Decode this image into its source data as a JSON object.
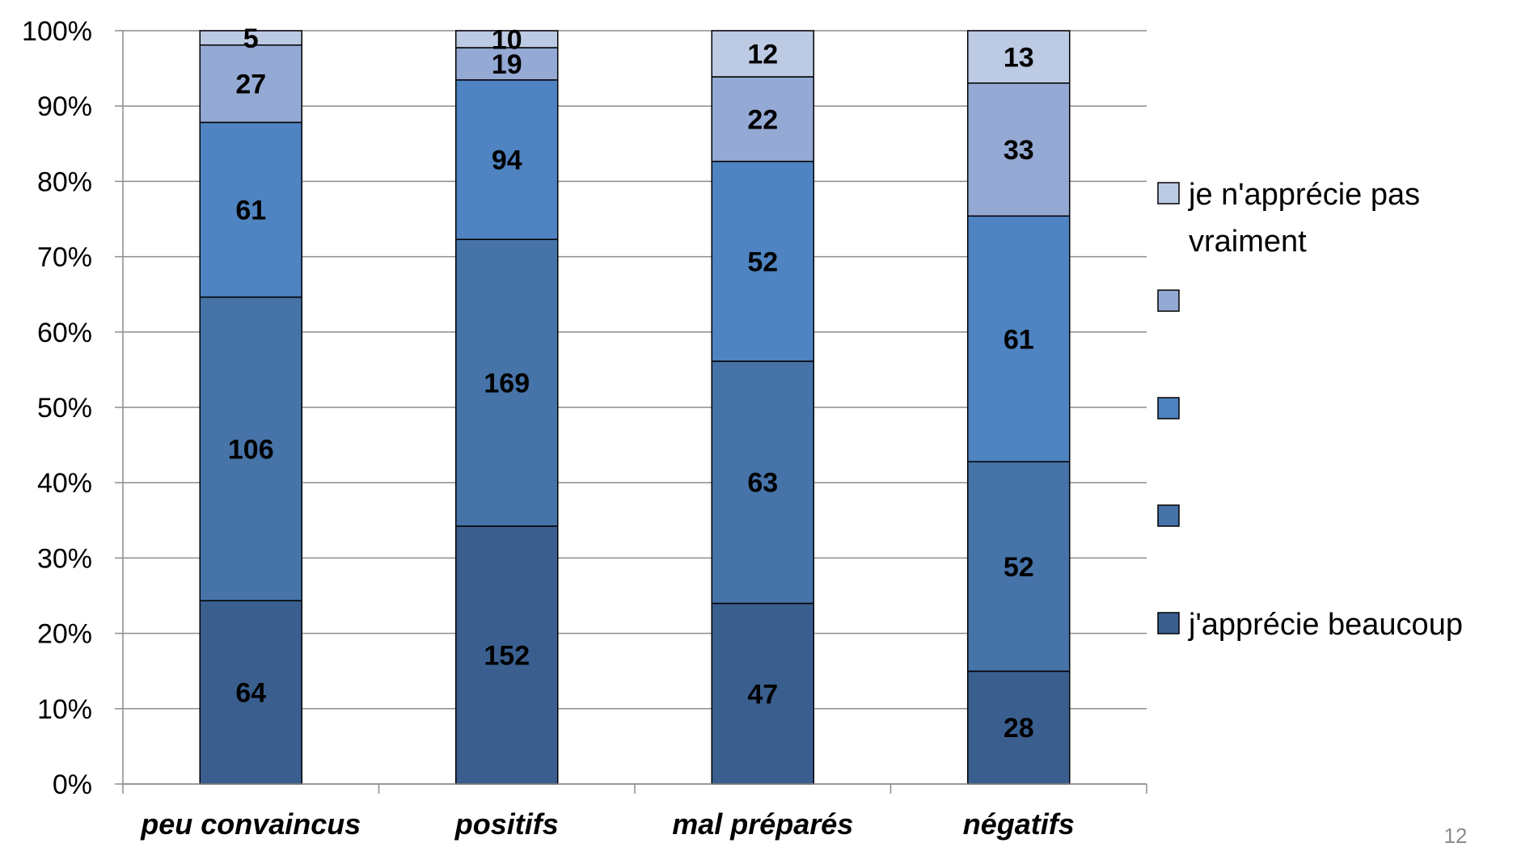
{
  "chart_data": {
    "type": "bar",
    "stacked": "percent",
    "categories": [
      "peu convaincus",
      "positifs",
      "mal préparés",
      "négatifs"
    ],
    "series": [
      {
        "name": "j'apprécie beaucoup",
        "values": [
          64,
          152,
          47,
          28
        ],
        "color": "#3a5f8f"
      },
      {
        "name": "",
        "values": [
          106,
          169,
          63,
          52
        ],
        "color": "#4673a8"
      },
      {
        "name": "",
        "values": [
          61,
          94,
          52,
          61
        ],
        "color": "#4f83c1"
      },
      {
        "name": "",
        "values": [
          27,
          19,
          22,
          33
        ],
        "color": "#94a9d3"
      },
      {
        "name": "je n'apprécie pas vraiment",
        "values": [
          5,
          10,
          12,
          13
        ],
        "color": "#bccae3"
      }
    ],
    "ylim": [
      0,
      100
    ],
    "yticks": [
      "0%",
      "10%",
      "20%",
      "30%",
      "40%",
      "50%",
      "60%",
      "70%",
      "80%",
      "90%",
      "100%"
    ],
    "grid": true,
    "legend": "right",
    "legend_order": "reversed"
  },
  "page_number": "12"
}
